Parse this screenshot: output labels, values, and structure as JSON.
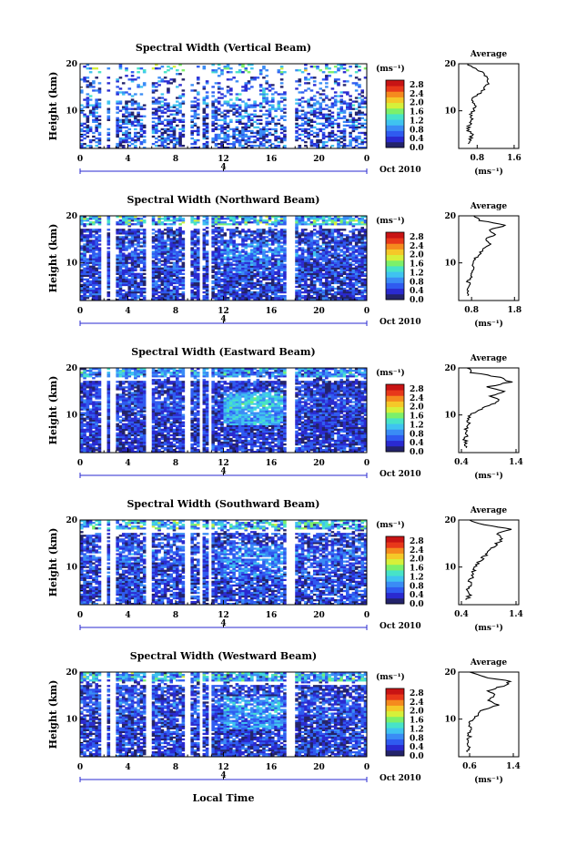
{
  "panels_common": {
    "ylabel": "Height (km)",
    "y_ticks": [
      "20",
      "10"
    ],
    "x_ticks": [
      "0",
      "4",
      "8",
      "12",
      "16",
      "20",
      "0"
    ],
    "date_tick": "4",
    "date_label": "Oct 2010",
    "colorbar_unit": "(ms⁻¹)",
    "colorbar_ticks": [
      "2.8",
      "2.4",
      "2.0",
      "1.6",
      "1.2",
      "0.8",
      "0.4",
      "0.0"
    ],
    "avg_title": "Average",
    "avg_unit": "(ms⁻¹)",
    "avg_y_ticks": [
      "20",
      "10"
    ]
  },
  "xlabel": "Local Time",
  "colors": {
    "scale": [
      "#23236a",
      "#2a2ad0",
      "#2f5bf0",
      "#3a8cf5",
      "#3fc3f0",
      "#47e3c8",
      "#7cf06a",
      "#d6f03a",
      "#f5c828",
      "#f58a1e",
      "#e8381a",
      "#c81414"
    ],
    "background": "#ffffff"
  },
  "chart_data": [
    {
      "type": "heatmap",
      "title": "Spectral Width (Vertical Beam)",
      "xlim": [
        0,
        24
      ],
      "ylim": [
        2,
        20
      ],
      "avg": {
        "xticks": [
          "0.8",
          "1.6"
        ],
        "xlim": [
          0.4,
          1.7
        ],
        "profile": [
          [
            0.62,
            3
          ],
          [
            0.65,
            4
          ],
          [
            0.68,
            5
          ],
          [
            0.6,
            6
          ],
          [
            0.62,
            7
          ],
          [
            0.7,
            8
          ],
          [
            0.66,
            9
          ],
          [
            0.72,
            10
          ],
          [
            0.78,
            11
          ],
          [
            0.7,
            12
          ],
          [
            0.74,
            13
          ],
          [
            0.9,
            14
          ],
          [
            0.95,
            15
          ],
          [
            1.05,
            16
          ],
          [
            1.0,
            17
          ],
          [
            0.95,
            18
          ],
          [
            0.75,
            19
          ],
          [
            0.6,
            20
          ]
        ]
      },
      "intensity": {
        "base": 0.18,
        "noise": 0.18,
        "mid_boost": 0.05,
        "high_band": 0.35,
        "sparse": 0.45
      }
    },
    {
      "type": "heatmap",
      "title": "Spectral Width (Northward Beam)",
      "xlim": [
        0,
        24
      ],
      "ylim": [
        2,
        20
      ],
      "avg": {
        "xticks": [
          "0.8",
          "1.8"
        ],
        "xlim": [
          0.5,
          1.9
        ],
        "profile": [
          [
            0.7,
            3
          ],
          [
            0.72,
            4
          ],
          [
            0.75,
            5
          ],
          [
            0.72,
            6
          ],
          [
            0.8,
            7
          ],
          [
            0.78,
            8
          ],
          [
            0.85,
            9
          ],
          [
            0.82,
            10
          ],
          [
            0.9,
            11
          ],
          [
            1.0,
            12
          ],
          [
            1.05,
            13
          ],
          [
            1.25,
            14
          ],
          [
            1.1,
            15
          ],
          [
            1.35,
            16
          ],
          [
            1.2,
            17
          ],
          [
            1.6,
            18
          ],
          [
            1.0,
            19
          ],
          [
            0.85,
            20
          ]
        ]
      },
      "intensity": {
        "base": 0.15,
        "noise": 0.14,
        "mid_boost": 0.06,
        "high_band": 0.4,
        "sparse": 0.12
      }
    },
    {
      "type": "heatmap",
      "title": "Spectral Width (Eastward Beam)",
      "xlim": [
        0,
        24
      ],
      "ylim": [
        2,
        20
      ],
      "avg": {
        "xticks": [
          "0.4",
          "1.4"
        ],
        "xlim": [
          0.35,
          1.45
        ],
        "profile": [
          [
            0.45,
            3
          ],
          [
            0.48,
            4
          ],
          [
            0.46,
            5
          ],
          [
            0.5,
            6
          ],
          [
            0.48,
            7
          ],
          [
            0.55,
            8
          ],
          [
            0.52,
            9
          ],
          [
            0.58,
            10
          ],
          [
            0.7,
            11
          ],
          [
            0.9,
            12
          ],
          [
            1.1,
            13
          ],
          [
            0.95,
            14
          ],
          [
            1.2,
            15
          ],
          [
            0.9,
            16
          ],
          [
            1.3,
            17
          ],
          [
            1.1,
            18
          ],
          [
            0.6,
            19
          ],
          [
            0.5,
            20
          ]
        ]
      },
      "intensity": {
        "base": 0.14,
        "noise": 0.12,
        "mid_boost": 0.2,
        "high_band": 0.3,
        "sparse": 0.08
      }
    },
    {
      "type": "heatmap",
      "title": "Spectral Width (Southward Beam)",
      "xlim": [
        0,
        24
      ],
      "ylim": [
        2,
        20
      ],
      "avg": {
        "xticks": [
          "0.4",
          "1.4"
        ],
        "xlim": [
          0.35,
          1.45
        ],
        "profile": [
          [
            0.5,
            3
          ],
          [
            0.55,
            4
          ],
          [
            0.5,
            5
          ],
          [
            0.58,
            6
          ],
          [
            0.55,
            7
          ],
          [
            0.6,
            8
          ],
          [
            0.62,
            9
          ],
          [
            0.65,
            10
          ],
          [
            0.72,
            11
          ],
          [
            0.8,
            12
          ],
          [
            0.9,
            13
          ],
          [
            0.95,
            14
          ],
          [
            1.05,
            15
          ],
          [
            1.15,
            16
          ],
          [
            1.05,
            17
          ],
          [
            1.3,
            18
          ],
          [
            0.8,
            19
          ],
          [
            0.55,
            20
          ]
        ]
      },
      "intensity": {
        "base": 0.16,
        "noise": 0.14,
        "mid_boost": 0.08,
        "high_band": 0.38,
        "sparse": 0.15
      }
    },
    {
      "type": "heatmap",
      "title": "Spectral Width (Westward Beam)",
      "xlim": [
        0,
        24
      ],
      "ylim": [
        2,
        20
      ],
      "avg": {
        "xticks": [
          "0.6",
          "1.4"
        ],
        "xlim": [
          0.4,
          1.5
        ],
        "profile": [
          [
            0.55,
            3
          ],
          [
            0.58,
            4
          ],
          [
            0.55,
            5
          ],
          [
            0.6,
            6
          ],
          [
            0.58,
            7
          ],
          [
            0.62,
            8
          ],
          [
            0.6,
            9
          ],
          [
            0.66,
            10
          ],
          [
            0.75,
            11
          ],
          [
            0.85,
            12
          ],
          [
            1.15,
            13
          ],
          [
            0.95,
            14
          ],
          [
            1.05,
            15
          ],
          [
            0.95,
            16
          ],
          [
            1.2,
            17
          ],
          [
            1.35,
            18
          ],
          [
            0.85,
            19
          ],
          [
            0.6,
            20
          ]
        ]
      },
      "intensity": {
        "base": 0.15,
        "noise": 0.13,
        "mid_boost": 0.12,
        "high_band": 0.35,
        "sparse": 0.12
      }
    }
  ]
}
